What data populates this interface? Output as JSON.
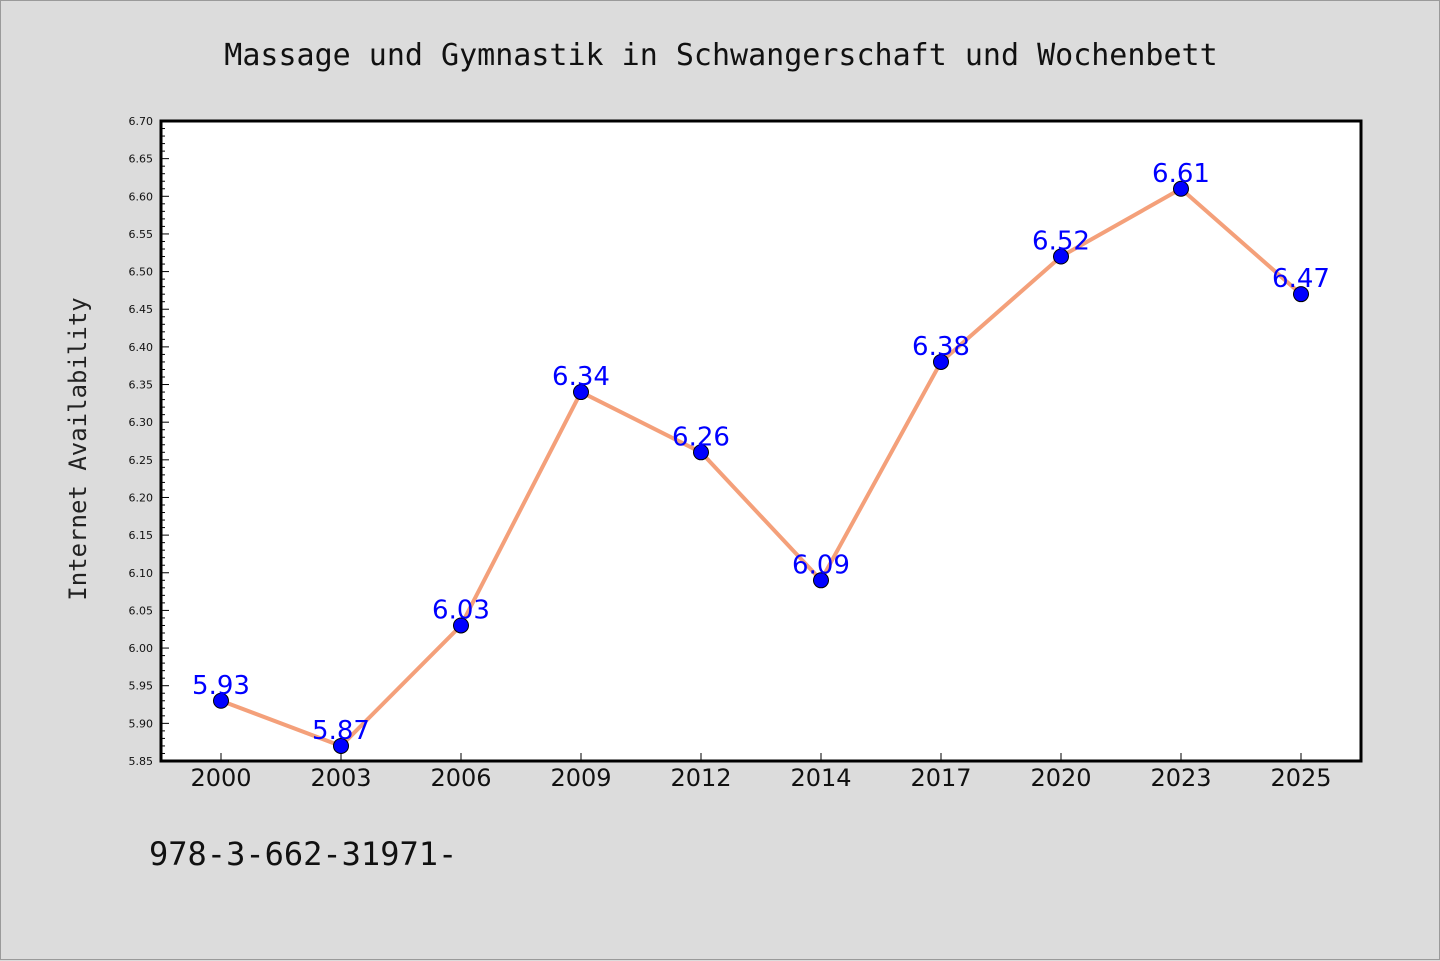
{
  "chart_data": {
    "type": "line",
    "title": "Massage und Gymnastik in Schwangerschaft und Wochenbett",
    "xlabel": "",
    "ylabel": "Internet Availability",
    "categories": [
      "2000",
      "2003",
      "2006",
      "2009",
      "2012",
      "2014",
      "2017",
      "2020",
      "2023",
      "2025"
    ],
    "series": [
      {
        "values": [
          5.93,
          5.87,
          6.03,
          6.34,
          6.26,
          6.09,
          6.38,
          6.52,
          6.61,
          6.47
        ]
      }
    ],
    "data_labels": [
      "5.93",
      "5.87",
      "6.03",
      "6.34",
      "6.26",
      "6.09",
      "6.38",
      "6.52",
      "6.61",
      "6.47"
    ],
    "ylim": [
      5.85,
      6.7
    ],
    "yticks": [
      "5.85",
      "5.90",
      "5.95",
      "6.00",
      "6.05",
      "6.10",
      "6.15",
      "6.20",
      "6.25",
      "6.30",
      "6.35",
      "6.40",
      "6.45",
      "6.50",
      "6.55",
      "6.60",
      "6.65",
      "6.70"
    ],
    "grid": false,
    "legend": "none",
    "colors": {
      "line": "#f4a07a",
      "marker": "#0000ff",
      "marker_edge": "#000000",
      "data_label": "#0000ff",
      "plot_background": "#ffffff",
      "figure_background": "#dcdcdc"
    }
  },
  "footnote": "978-3-662-31971-"
}
